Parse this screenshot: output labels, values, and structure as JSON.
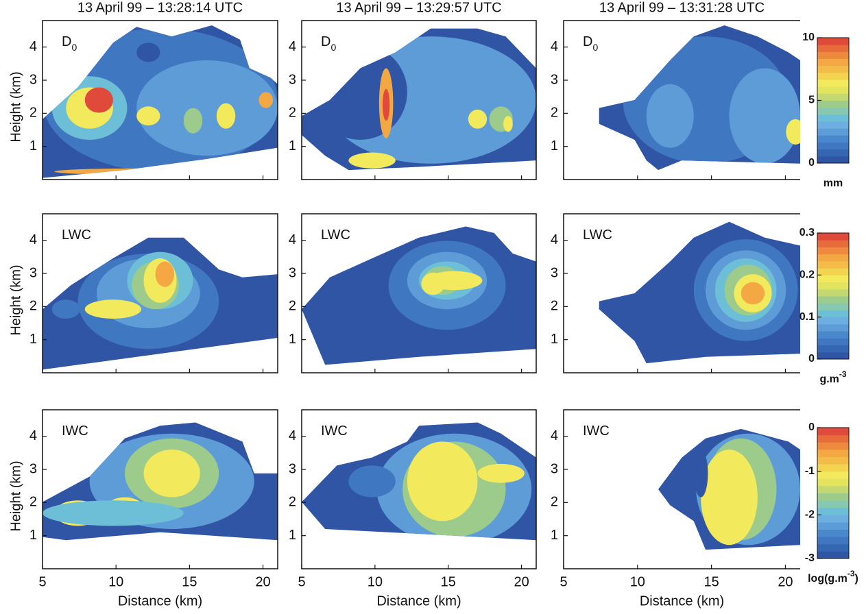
{
  "columns": [
    {
      "title": "13 April 99 – 13:28:14 UTC"
    },
    {
      "title": "13 April 99 – 13:29:57 UTC"
    },
    {
      "title": "13 April 99 – 13:31:28 UTC"
    }
  ],
  "rows": [
    {
      "label": "D",
      "label_sub": "0",
      "colorbar": {
        "lim": [
          0,
          10
        ],
        "ticks": [
          0,
          5,
          10
        ],
        "unit": "mm"
      }
    },
    {
      "label": "LWC",
      "colorbar": {
        "lim": [
          0,
          0.3
        ],
        "ticks": [
          0,
          0.1,
          0.2,
          0.3
        ],
        "unit": "g.m",
        "unit_sup": "-3"
      }
    },
    {
      "label": "IWC",
      "colorbar": {
        "lim": [
          -3,
          0
        ],
        "ticks": [
          -3,
          -2,
          -1,
          0
        ],
        "unit": "log(g.m",
        "unit_sup": "-3",
        "unit_end": ")"
      }
    }
  ],
  "axes": {
    "x_label": "Distance (km)",
    "y_label": "Height (km)",
    "xlim": [
      5,
      21
    ],
    "xticks": [
      5,
      10,
      15,
      20
    ],
    "ylim": [
      0,
      4.8
    ],
    "yticks": [
      1,
      2,
      3,
      4
    ]
  }
}
